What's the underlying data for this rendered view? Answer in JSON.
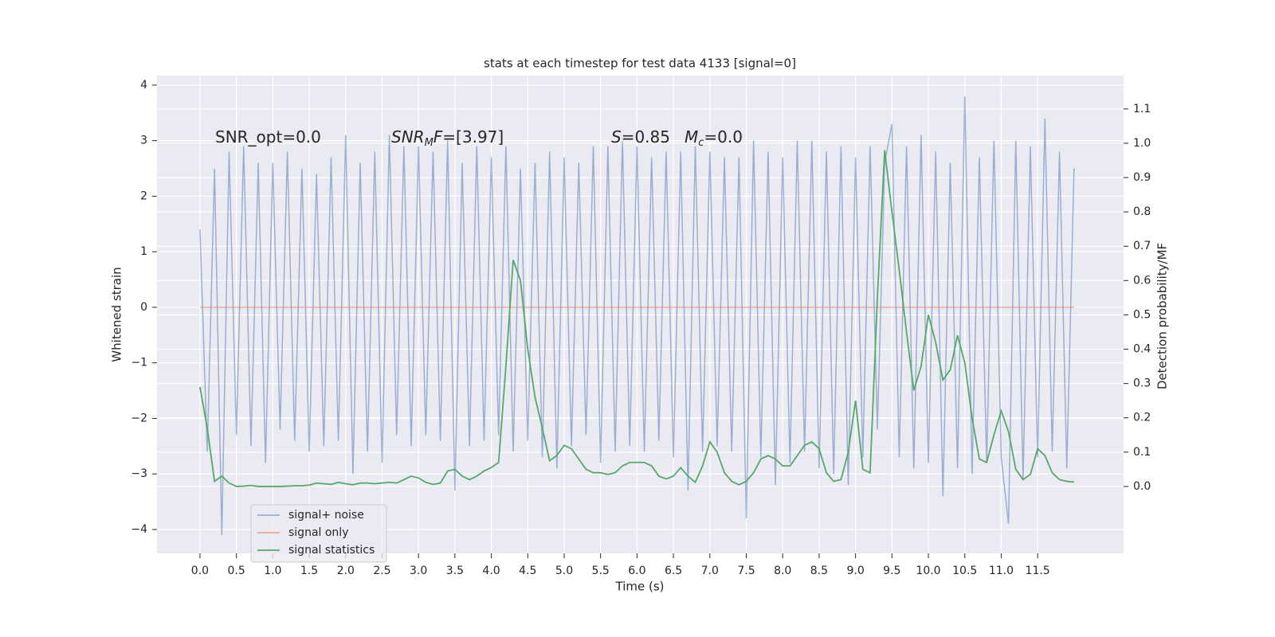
{
  "chart_data": {
    "type": "line",
    "title": "stats at each timestep for test data 4133 [signal=0]",
    "xlabel": "Time (s)",
    "ylabel": "Whitened strain",
    "y2label": "Detection probability/MF",
    "annotations": [
      {
        "runs": [
          {
            "text": "SNR_opt=0.0"
          }
        ]
      },
      {
        "runs": [
          {
            "text": "SNR",
            "italic": true
          },
          {
            "text": "M",
            "italic": true,
            "sub": true
          },
          {
            "text": "F",
            "italic": true
          },
          {
            "text": "=[3.97]"
          }
        ]
      },
      {
        "runs": [
          {
            "text": "S",
            "italic": true
          },
          {
            "text": "=0.85"
          }
        ]
      },
      {
        "runs": [
          {
            "text": "M",
            "italic": true
          },
          {
            "text": "c",
            "italic": true,
            "sub": true
          },
          {
            "text": "=0.0"
          }
        ]
      }
    ],
    "x": [
      0.0,
      0.1,
      0.2,
      0.3,
      0.4,
      0.5,
      0.6,
      0.7,
      0.8,
      0.9,
      1.0,
      1.1,
      1.2,
      1.3,
      1.4,
      1.5,
      1.6,
      1.7,
      1.8,
      1.9,
      2.0,
      2.1,
      2.2,
      2.3,
      2.4,
      2.5,
      2.6,
      2.7,
      2.8,
      2.9,
      3.0,
      3.1,
      3.2,
      3.3,
      3.4,
      3.5,
      3.6,
      3.7,
      3.8,
      3.9,
      4.0,
      4.1,
      4.2,
      4.3,
      4.4,
      4.5,
      4.6,
      4.7,
      4.8,
      4.9,
      5.0,
      5.1,
      5.2,
      5.3,
      5.4,
      5.5,
      5.6,
      5.7,
      5.8,
      5.9,
      6.0,
      6.1,
      6.2,
      6.3,
      6.4,
      6.5,
      6.6,
      6.7,
      6.8,
      6.9,
      7.0,
      7.1,
      7.2,
      7.3,
      7.4,
      7.5,
      7.6,
      7.7,
      7.8,
      7.9,
      8.0,
      8.1,
      8.2,
      8.3,
      8.4,
      8.5,
      8.6,
      8.7,
      8.8,
      8.9,
      9.0,
      9.1,
      9.2,
      9.3,
      9.4,
      9.5,
      9.6,
      9.7,
      9.8,
      9.9,
      10.0,
      10.1,
      10.2,
      10.3,
      10.4,
      10.5,
      10.6,
      10.7,
      10.8,
      10.9,
      11.0,
      11.1,
      11.2,
      11.3,
      11.4,
      11.5,
      11.6,
      11.7,
      11.8,
      11.9,
      12.0
    ],
    "series": [
      {
        "name": "signal+ noise",
        "color": "#4c72b0",
        "alpha": 0.5,
        "values": [
          1.4,
          -2.6,
          2.5,
          -4.1,
          2.8,
          -2.3,
          2.9,
          -2.5,
          2.6,
          -2.8,
          2.6,
          -2.2,
          2.8,
          -2.4,
          2.5,
          -2.6,
          2.4,
          -2.5,
          2.7,
          -2.4,
          3.1,
          -3.0,
          2.6,
          -2.6,
          2.8,
          -2.8,
          3.1,
          -2.3,
          2.9,
          -2.5,
          2.9,
          -2.3,
          2.8,
          -2.4,
          3.0,
          -3.3,
          2.6,
          -2.5,
          2.9,
          -2.4,
          2.7,
          -2.3,
          2.9,
          -2.6,
          2.5,
          -2.4,
          2.6,
          -2.7,
          2.8,
          -2.9,
          2.7,
          -2.5,
          2.6,
          -2.3,
          2.9,
          -2.8,
          2.9,
          -2.6,
          3.0,
          -2.5,
          2.9,
          -2.6,
          2.7,
          -2.4,
          2.8,
          -2.7,
          2.8,
          -3.3,
          2.9,
          -2.6,
          2.8,
          -2.5,
          2.7,
          -2.6,
          2.7,
          -3.8,
          3.0,
          -2.7,
          2.8,
          -3.2,
          2.7,
          -2.8,
          3.0,
          -2.6,
          3.0,
          -2.9,
          2.8,
          -3.0,
          2.9,
          -3.2,
          2.7,
          -2.7,
          2.9,
          -2.2,
          2.6,
          3.3,
          -2.7,
          2.9,
          -2.9,
          3.1,
          -2.8,
          2.8,
          -3.4,
          2.6,
          -2.9,
          3.8,
          -3.0,
          2.7,
          -2.8,
          3.0,
          -2.7,
          -3.9,
          3.0,
          -3.1,
          2.9,
          -2.7,
          3.4,
          -2.6,
          2.8,
          -2.9,
          2.5
        ]
      },
      {
        "name": "signal only",
        "color": "#dd8452",
        "alpha": 0.6,
        "values": [
          0,
          0,
          0,
          0,
          0,
          0,
          0,
          0,
          0,
          0,
          0,
          0,
          0,
          0,
          0,
          0,
          0,
          0,
          0,
          0,
          0,
          0,
          0,
          0,
          0,
          0,
          0,
          0,
          0,
          0,
          0,
          0,
          0,
          0,
          0,
          0,
          0,
          0,
          0,
          0,
          0,
          0,
          0,
          0,
          0,
          0,
          0,
          0,
          0,
          0,
          0,
          0,
          0,
          0,
          0,
          0,
          0,
          0,
          0,
          0,
          0,
          0,
          0,
          0,
          0,
          0,
          0,
          0,
          0,
          0,
          0,
          0,
          0,
          0,
          0,
          0,
          0,
          0,
          0,
          0,
          0,
          0,
          0,
          0,
          0,
          0,
          0,
          0,
          0,
          0,
          0,
          0,
          0,
          0,
          0,
          0,
          0,
          0,
          0,
          0,
          0,
          0,
          0,
          0,
          0,
          0,
          0,
          0,
          0,
          0,
          0,
          0,
          0,
          0,
          0,
          0,
          0,
          0,
          0,
          0,
          0
        ]
      },
      {
        "name": "signal statistics",
        "color": "#55a868",
        "alpha": 1,
        "axis": "y2",
        "values": [
          0.29,
          0.17,
          0.015,
          0.03,
          0.01,
          0.0,
          0.001,
          0.003,
          0.0,
          0.0,
          0.0,
          0.0,
          0.001,
          0.002,
          0.002,
          0.004,
          0.01,
          0.008,
          0.006,
          0.012,
          0.008,
          0.005,
          0.01,
          0.01,
          0.008,
          0.01,
          0.012,
          0.01,
          0.02,
          0.03,
          0.025,
          0.012,
          0.006,
          0.01,
          0.045,
          0.05,
          0.03,
          0.02,
          0.03,
          0.045,
          0.055,
          0.07,
          0.35,
          0.66,
          0.6,
          0.4,
          0.26,
          0.17,
          0.075,
          0.09,
          0.12,
          0.11,
          0.08,
          0.05,
          0.04,
          0.04,
          0.035,
          0.04,
          0.06,
          0.07,
          0.07,
          0.07,
          0.06,
          0.03,
          0.022,
          0.03,
          0.055,
          0.03,
          0.012,
          0.06,
          0.13,
          0.1,
          0.04,
          0.015,
          0.005,
          0.015,
          0.04,
          0.08,
          0.09,
          0.08,
          0.06,
          0.06,
          0.09,
          0.12,
          0.13,
          0.11,
          0.04,
          0.015,
          0.02,
          0.1,
          0.25,
          0.05,
          0.04,
          0.55,
          0.98,
          0.8,
          0.63,
          0.45,
          0.28,
          0.35,
          0.5,
          0.42,
          0.31,
          0.34,
          0.44,
          0.36,
          0.2,
          0.08,
          0.07,
          0.15,
          0.22,
          0.16,
          0.05,
          0.02,
          0.035,
          0.11,
          0.09,
          0.04,
          0.02,
          0.015,
          0.013
        ]
      }
    ],
    "xlim": [
      -0.59,
      12.68
    ],
    "xticks": [
      {
        "value": 0,
        "label": "0.0"
      },
      0.5,
      {
        "value": 1,
        "label": "1.0"
      },
      1.5,
      {
        "value": 2,
        "label": "2.0"
      },
      2.5,
      {
        "value": 3,
        "label": "3.0"
      },
      3.5,
      {
        "value": 4,
        "label": "4.0"
      },
      4.5,
      {
        "value": 5,
        "label": "5.0"
      },
      5.5,
      {
        "value": 6,
        "label": "6.0"
      },
      6.5,
      {
        "value": 7,
        "label": "7.0"
      },
      7.5,
      {
        "value": 8,
        "label": "8.0"
      },
      8.5,
      {
        "value": 9,
        "label": "9.0"
      },
      9.5,
      {
        "value": 10,
        "label": "10.0"
      },
      10.5,
      {
        "value": 11,
        "label": "11.0"
      },
      11.5
    ],
    "ylim": [
      -4.43,
      4.17
    ],
    "yticks": [
      {
        "value": -4,
        "label": "−4"
      },
      {
        "value": -3,
        "label": "−3"
      },
      {
        "value": -2,
        "label": "−2"
      },
      {
        "value": -1,
        "label": "−1"
      },
      0,
      1,
      2,
      3,
      4
    ],
    "y2lim": [
      -0.195,
      1.197
    ],
    "y2ticks": [
      {
        "value": 0,
        "label": "0.0"
      },
      0.1,
      0.2,
      0.3,
      0.4,
      0.5,
      0.6,
      0.7,
      0.8,
      0.9,
      {
        "value": 1,
        "label": "1.0"
      },
      1.1
    ],
    "grid": true,
    "background": "#eaeaf2",
    "legend": "lower left"
  }
}
